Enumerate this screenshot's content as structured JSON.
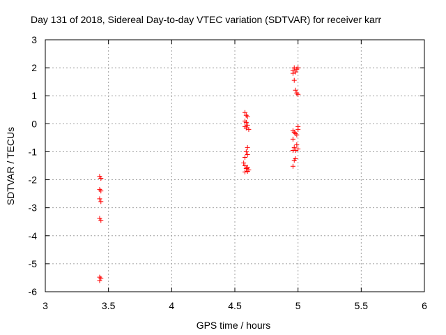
{
  "chart_data": {
    "type": "scatter",
    "title": "Day 131 of 2018, Sidereal Day-to-day VTEC variation (SDTVAR) for receiver karr",
    "xlabel": "GPS time / hours",
    "ylabel": "SDTVAR / TECUs",
    "xlim": [
      3,
      6
    ],
    "ylim": [
      -6,
      3
    ],
    "xticks": [
      3,
      3.5,
      4,
      4.5,
      5,
      5.5,
      6
    ],
    "xtick_labels": [
      "3",
      "3.5",
      "4",
      "4.5",
      "5",
      "5.5",
      "6"
    ],
    "yticks": [
      -6,
      -5,
      -4,
      -3,
      -2,
      -1,
      0,
      1,
      2,
      3
    ],
    "ytick_labels": [
      "-6",
      "-5",
      "-4",
      "-3",
      "-2",
      "-1",
      "0",
      "1",
      "2",
      "3"
    ],
    "grid": true,
    "marker": "+",
    "marker_color": "#ff0000",
    "series": [
      {
        "name": "SDTVAR",
        "points": [
          [
            3.43,
            -1.88
          ],
          [
            3.44,
            -1.95
          ],
          [
            3.43,
            -2.35
          ],
          [
            3.44,
            -2.4
          ],
          [
            3.43,
            -2.68
          ],
          [
            3.44,
            -2.78
          ],
          [
            3.43,
            -3.38
          ],
          [
            3.44,
            -3.45
          ],
          [
            3.43,
            -5.48
          ],
          [
            3.44,
            -5.52
          ],
          [
            3.43,
            -5.6
          ],
          [
            4.58,
            0.4
          ],
          [
            4.59,
            0.3
          ],
          [
            4.6,
            0.25
          ],
          [
            4.58,
            0.1
          ],
          [
            4.59,
            0.05
          ],
          [
            4.6,
            -0.05
          ],
          [
            4.58,
            -0.1
          ],
          [
            4.59,
            -0.15
          ],
          [
            4.61,
            -0.2
          ],
          [
            4.6,
            -0.85
          ],
          [
            4.59,
            -1.0
          ],
          [
            4.6,
            -1.1
          ],
          [
            4.58,
            -1.2
          ],
          [
            4.57,
            -1.4
          ],
          [
            4.58,
            -1.5
          ],
          [
            4.6,
            -1.55
          ],
          [
            4.59,
            -1.6
          ],
          [
            4.61,
            -1.65
          ],
          [
            4.58,
            -1.72
          ],
          [
            4.6,
            -1.7
          ],
          [
            4.97,
            2.0
          ],
          [
            4.96,
            1.9
          ],
          [
            4.98,
            1.85
          ],
          [
            4.99,
            1.95
          ],
          [
            5.0,
            2.0
          ],
          [
            4.96,
            1.8
          ],
          [
            4.97,
            1.55
          ],
          [
            4.98,
            1.2
          ],
          [
            4.99,
            1.1
          ],
          [
            5.0,
            1.05
          ],
          [
            4.96,
            -0.25
          ],
          [
            4.97,
            -0.3
          ],
          [
            4.98,
            -0.35
          ],
          [
            5.0,
            -0.2
          ],
          [
            4.99,
            -0.4
          ],
          [
            4.96,
            -0.55
          ],
          [
            4.97,
            -0.85
          ],
          [
            4.98,
            -0.95
          ],
          [
            5.0,
            -0.9
          ],
          [
            4.96,
            -0.95
          ],
          [
            4.98,
            -1.25
          ],
          [
            4.97,
            -1.3
          ],
          [
            4.96,
            -1.52
          ],
          [
            5.0,
            -0.1
          ],
          [
            4.99,
            -0.75
          ]
        ]
      }
    ]
  }
}
